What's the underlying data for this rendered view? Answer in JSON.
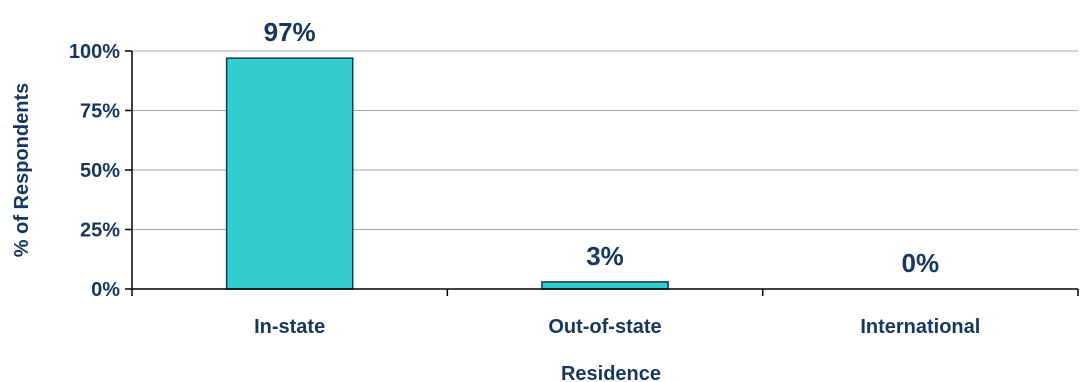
{
  "chart_data": {
    "type": "bar",
    "categories": [
      "In-state",
      "Out-of-state",
      "International"
    ],
    "values": [
      97,
      3,
      0
    ],
    "data_labels": [
      "97%",
      "3%",
      "0%"
    ],
    "title": "",
    "xlabel": "Residence",
    "ylabel": "% of Respondents",
    "ylim": [
      0,
      100
    ],
    "yticks": [
      0,
      25,
      50,
      75,
      100
    ],
    "ytick_labels": [
      "0%",
      "25%",
      "50%",
      "75%",
      "100%"
    ],
    "grid": true,
    "legend": "none",
    "bar_color": "#33cccc",
    "bar_edge_color": "#17375e",
    "text_color": "#17375e"
  }
}
